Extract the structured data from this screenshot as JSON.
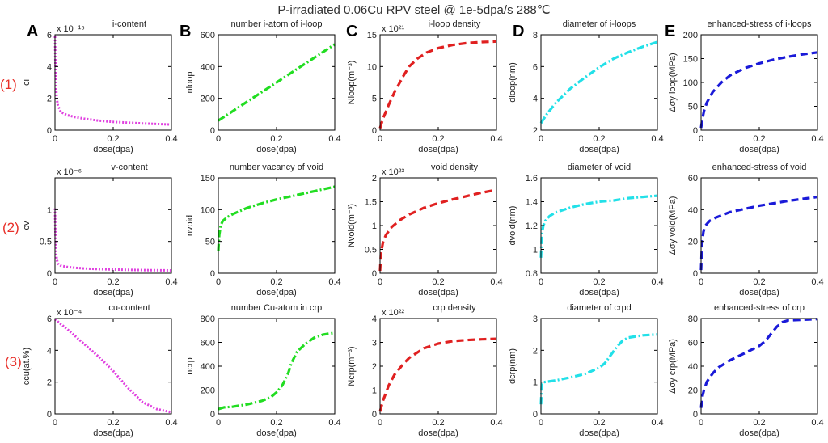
{
  "title": "P-irradiated 0.06Cu RPV steel @ 1e-5dpa/s  288℃",
  "column_letters": [
    "A",
    "B",
    "C",
    "D",
    "E"
  ],
  "row_labels": [
    "(1)",
    "(2)",
    "(3)"
  ],
  "colors": {
    "magenta": "#e040e0",
    "green": "#22dd22",
    "red": "#e02020",
    "cyan": "#22e0e8",
    "blue": "#1a1ad8",
    "row_label": "#e8302a"
  },
  "chart_data": [
    {
      "type": "line",
      "row": 0,
      "col": 0,
      "title": "i-content",
      "xlabel": "dose(dpa)",
      "ylabel": "ci",
      "exponent": "x 10^-15",
      "xlim": [
        0,
        0.4
      ],
      "ylim": [
        0,
        6
      ],
      "yticks": [
        "0",
        "2",
        "4",
        "6"
      ],
      "xticks": [
        "0",
        "0.2",
        "0.4"
      ],
      "color": "magenta",
      "dash": "dot",
      "x": [
        0,
        0.001,
        0.003,
        0.006,
        0.01,
        0.02,
        0.04,
        0.07,
        0.1,
        0.15,
        0.2,
        0.3,
        0.4
      ],
      "y": [
        5.9,
        4.5,
        2.9,
        2.0,
        1.55,
        1.15,
        0.95,
        0.82,
        0.72,
        0.6,
        0.52,
        0.42,
        0.35
      ]
    },
    {
      "type": "line",
      "row": 0,
      "col": 1,
      "title": "number i-atom of i-loop",
      "xlabel": "dose(dpa)",
      "ylabel": "nloop",
      "xlim": [
        0,
        0.4
      ],
      "ylim": [
        0,
        600
      ],
      "yticks": [
        "0",
        "200",
        "400",
        "600"
      ],
      "xticks": [
        "0",
        "0.2",
        "0.4"
      ],
      "color": "green",
      "dash": "dashdot",
      "x": [
        0,
        0.1,
        0.2,
        0.3,
        0.4
      ],
      "y": [
        60,
        180,
        300,
        420,
        540
      ]
    },
    {
      "type": "line",
      "row": 0,
      "col": 2,
      "title": "i-loop density",
      "xlabel": "dose(dpa)",
      "ylabel": "Nloop(m⁻³)",
      "exponent": "x 10^21",
      "xlim": [
        0,
        0.4
      ],
      "ylim": [
        0,
        15
      ],
      "yticks": [
        "0",
        "5",
        "10",
        "15"
      ],
      "xticks": [
        "0",
        "0.2",
        "0.4"
      ],
      "color": "red",
      "dash": "dash",
      "x": [
        0,
        0.01,
        0.03,
        0.05,
        0.08,
        0.1,
        0.13,
        0.16,
        0.2,
        0.25,
        0.3,
        0.35,
        0.4
      ],
      "y": [
        0.3,
        1.8,
        4.0,
        6.0,
        8.5,
        10.0,
        11.3,
        12.2,
        12.9,
        13.4,
        13.7,
        13.85,
        13.95
      ]
    },
    {
      "type": "line",
      "row": 0,
      "col": 3,
      "title": "diameter of i-loops",
      "xlabel": "dose(dpa)",
      "ylabel": "dloop(nm)",
      "xlim": [
        0,
        0.4
      ],
      "ylim": [
        2,
        8
      ],
      "yticks": [
        "2",
        "4",
        "6",
        "8"
      ],
      "xticks": [
        "0",
        "0.2",
        "0.4"
      ],
      "color": "cyan",
      "dash": "dashdot",
      "x": [
        0,
        0.02,
        0.05,
        0.1,
        0.15,
        0.2,
        0.25,
        0.3,
        0.35,
        0.4
      ],
      "y": [
        2.45,
        3.0,
        3.7,
        4.6,
        5.3,
        5.95,
        6.5,
        6.9,
        7.25,
        7.55
      ]
    },
    {
      "type": "line",
      "row": 0,
      "col": 4,
      "title": "enhanced-stress of i-loops",
      "xlabel": "dose(dpa)",
      "ylabel": "Δσy loop(MPa)",
      "xlim": [
        0,
        0.4
      ],
      "ylim": [
        0,
        200
      ],
      "yticks": [
        "0",
        "50",
        "100",
        "150",
        "200"
      ],
      "xticks": [
        "0",
        "0.2",
        "0.4"
      ],
      "color": "blue",
      "dash": "dash",
      "x": [
        0,
        0.005,
        0.01,
        0.02,
        0.04,
        0.07,
        0.1,
        0.15,
        0.2,
        0.25,
        0.3,
        0.35,
        0.4
      ],
      "y": [
        5,
        25,
        40,
        58,
        80,
        100,
        115,
        130,
        140,
        148,
        154,
        159,
        163
      ]
    },
    {
      "type": "line",
      "row": 1,
      "col": 0,
      "title": "v-content",
      "xlabel": "dose(dpa)",
      "ylabel": "cv",
      "exponent": "x 10^-6",
      "xlim": [
        0,
        0.4
      ],
      "ylim": [
        0,
        1.5
      ],
      "yticks": [
        "0",
        "0.5",
        "1"
      ],
      "xticks": [
        "0",
        "0.2",
        "0.4"
      ],
      "color": "magenta",
      "dash": "dot",
      "x": [
        0,
        0.001,
        0.003,
        0.006,
        0.01,
        0.02,
        0.04,
        0.07,
        0.1,
        0.15,
        0.2,
        0.3,
        0.4
      ],
      "y": [
        1.02,
        0.7,
        0.35,
        0.22,
        0.15,
        0.12,
        0.1,
        0.085,
        0.075,
        0.065,
        0.058,
        0.05,
        0.045
      ]
    },
    {
      "type": "line",
      "row": 1,
      "col": 1,
      "title": "number vacancy of void",
      "xlabel": "dose(dpa)",
      "ylabel": "nvoid",
      "xlim": [
        0,
        0.4
      ],
      "ylim": [
        0,
        150
      ],
      "yticks": [
        "0",
        "50",
        "100",
        "150"
      ],
      "xticks": [
        "0",
        "0.2",
        "0.4"
      ],
      "color": "green",
      "dash": "dashdot",
      "x": [
        0,
        0.003,
        0.008,
        0.015,
        0.03,
        0.05,
        0.08,
        0.1,
        0.15,
        0.2,
        0.25,
        0.3,
        0.35,
        0.4
      ],
      "y": [
        35,
        60,
        75,
        82,
        88,
        93,
        99,
        103,
        110,
        116,
        121,
        126,
        131,
        136
      ]
    },
    {
      "type": "line",
      "row": 1,
      "col": 2,
      "title": "void density",
      "xlabel": "dose(dpa)",
      "ylabel": "Nvoid(m⁻³)",
      "exponent": "x 10^23",
      "xlim": [
        0,
        0.4
      ],
      "ylim": [
        0,
        2
      ],
      "yticks": [
        "0",
        "0.5",
        "1",
        "1.5",
        "2"
      ],
      "xticks": [
        "0",
        "0.2",
        "0.4"
      ],
      "color": "red",
      "dash": "dash",
      "x": [
        0,
        0.003,
        0.01,
        0.02,
        0.04,
        0.07,
        0.1,
        0.15,
        0.2,
        0.25,
        0.3,
        0.35,
        0.4
      ],
      "y": [
        0.05,
        0.4,
        0.65,
        0.8,
        0.97,
        1.12,
        1.23,
        1.37,
        1.47,
        1.55,
        1.62,
        1.69,
        1.75
      ]
    },
    {
      "type": "line",
      "row": 1,
      "col": 3,
      "title": "diameter of void",
      "xlabel": "dose(dpa)",
      "ylabel": "dvoid(nm)",
      "xlim": [
        0,
        0.4
      ],
      "ylim": [
        0.8,
        1.6
      ],
      "yticks": [
        "0.8",
        "1",
        "1.2",
        "1.4",
        "1.6"
      ],
      "xticks": [
        "0",
        "0.2",
        "0.4"
      ],
      "color": "cyan",
      "dash": "dashdot",
      "x": [
        0,
        0.003,
        0.008,
        0.015,
        0.03,
        0.05,
        0.1,
        0.15,
        0.2,
        0.25,
        0.3,
        0.35,
        0.4
      ],
      "y": [
        0.93,
        1.12,
        1.2,
        1.24,
        1.28,
        1.31,
        1.35,
        1.38,
        1.4,
        1.41,
        1.43,
        1.44,
        1.45
      ]
    },
    {
      "type": "line",
      "row": 1,
      "col": 4,
      "title": "enhanced-stress of void",
      "xlabel": "dose(dpa)",
      "ylabel": "Δσy void(MPa)",
      "xlim": [
        0,
        0.4
      ],
      "ylim": [
        0,
        60
      ],
      "yticks": [
        "0",
        "20",
        "40",
        "60"
      ],
      "xticks": [
        "0",
        "0.2",
        "0.4"
      ],
      "color": "blue",
      "dash": "dash",
      "x": [
        0,
        0.003,
        0.008,
        0.015,
        0.03,
        0.05,
        0.1,
        0.15,
        0.2,
        0.25,
        0.3,
        0.35,
        0.4
      ],
      "y": [
        2,
        18,
        26,
        30,
        33,
        35,
        38.5,
        40.5,
        42.5,
        44,
        45.5,
        46.8,
        48
      ]
    },
    {
      "type": "line",
      "row": 2,
      "col": 0,
      "title": "cu-content",
      "xlabel": "dose(dpa)",
      "ylabel": "ccu(at.%)",
      "exponent": "x 10^-4",
      "xlim": [
        0,
        0.4
      ],
      "ylim": [
        0,
        6
      ],
      "yticks": [
        "0",
        "2",
        "4",
        "6"
      ],
      "xticks": [
        "0",
        "0.2",
        "0.4"
      ],
      "color": "magenta",
      "dash": "dot",
      "x": [
        0,
        0.05,
        0.1,
        0.15,
        0.2,
        0.25,
        0.3,
        0.35,
        0.4
      ],
      "y": [
        5.95,
        5.2,
        4.4,
        3.6,
        2.7,
        1.65,
        0.75,
        0.3,
        0.1
      ]
    },
    {
      "type": "line",
      "row": 2,
      "col": 1,
      "title": "number Cu-atom in crp",
      "xlabel": "dose(dpa)",
      "ylabel": "ncrp",
      "xlim": [
        0,
        0.4
      ],
      "ylim": [
        0,
        800
      ],
      "yticks": [
        "0",
        "200",
        "400",
        "600",
        "800"
      ],
      "xticks": [
        "0",
        "0.2",
        "0.4"
      ],
      "color": "green",
      "dash": "dashdot",
      "x": [
        0,
        0.02,
        0.05,
        0.1,
        0.15,
        0.18,
        0.2,
        0.22,
        0.24,
        0.25,
        0.27,
        0.3,
        0.33,
        0.36,
        0.4
      ],
      "y": [
        40,
        55,
        60,
        80,
        110,
        140,
        180,
        240,
        340,
        420,
        520,
        590,
        640,
        665,
        680
      ]
    },
    {
      "type": "line",
      "row": 2,
      "col": 2,
      "title": "crp density",
      "xlabel": "dose(dpa)",
      "ylabel": "Ncrp(m⁻³)",
      "exponent": "x 10^22",
      "xlim": [
        0,
        0.4
      ],
      "ylim": [
        0,
        4
      ],
      "yticks": [
        "0",
        "1",
        "2",
        "3",
        "4"
      ],
      "xticks": [
        "0",
        "0.2",
        "0.4"
      ],
      "color": "red",
      "dash": "dash",
      "x": [
        0,
        0.01,
        0.03,
        0.05,
        0.08,
        0.1,
        0.15,
        0.2,
        0.25,
        0.3,
        0.35,
        0.4
      ],
      "y": [
        0.1,
        0.55,
        1.2,
        1.65,
        2.1,
        2.35,
        2.75,
        2.95,
        3.05,
        3.1,
        3.13,
        3.15
      ]
    },
    {
      "type": "line",
      "row": 2,
      "col": 3,
      "title": "diameter of crpd",
      "xlabel": "dose(dpa)",
      "ylabel": "dcrp(nm)",
      "xlim": [
        0,
        0.4
      ],
      "ylim": [
        0,
        3
      ],
      "yticks": [
        "0",
        "1",
        "2",
        "3"
      ],
      "xticks": [
        "0",
        "0.2",
        "0.4"
      ],
      "color": "cyan",
      "dash": "dashdot",
      "x": [
        0,
        0.003,
        0.01,
        0.05,
        0.1,
        0.15,
        0.2,
        0.22,
        0.24,
        0.26,
        0.28,
        0.3,
        0.35,
        0.4
      ],
      "y": [
        0.3,
        0.95,
        1.0,
        1.05,
        1.15,
        1.25,
        1.45,
        1.6,
        1.85,
        2.1,
        2.3,
        2.4,
        2.47,
        2.5
      ]
    },
    {
      "type": "line",
      "row": 2,
      "col": 4,
      "title": "enhanced-stress of crp",
      "xlabel": "dose(dpa)",
      "ylabel": "Δσy crp(MPa)",
      "xlim": [
        0,
        0.4
      ],
      "ylim": [
        0,
        80
      ],
      "yticks": [
        "0",
        "20",
        "40",
        "60",
        "80"
      ],
      "xticks": [
        "0",
        "0.2",
        "0.4"
      ],
      "color": "blue",
      "dash": "dash",
      "x": [
        0,
        0.005,
        0.01,
        0.02,
        0.04,
        0.06,
        0.1,
        0.15,
        0.2,
        0.22,
        0.24,
        0.26,
        0.28,
        0.3,
        0.35,
        0.4
      ],
      "y": [
        5,
        15,
        20,
        27,
        34,
        39,
        45,
        51,
        57,
        61,
        67,
        73,
        77,
        78.5,
        79,
        79.5
      ]
    }
  ]
}
